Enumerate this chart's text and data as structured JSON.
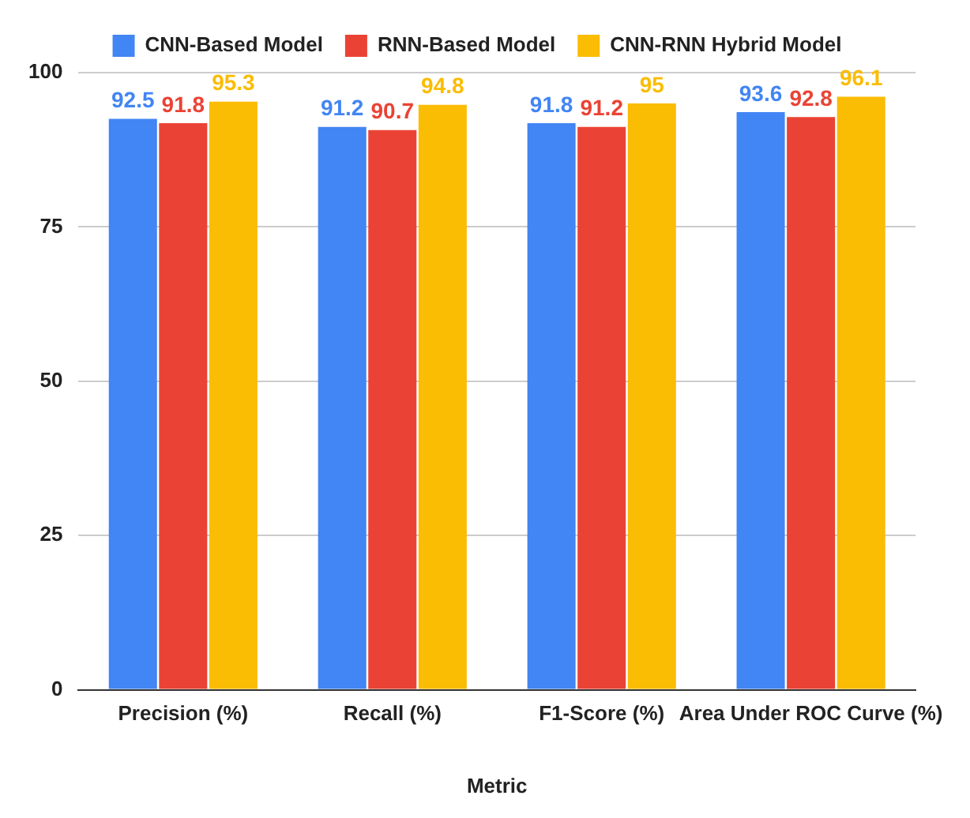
{
  "chart_data": {
    "type": "bar",
    "xlabel": "Metric",
    "categories": [
      "Precision (%)",
      "Recall (%)",
      "F1-Score (%)",
      "Area Under ROC Curve (%)"
    ],
    "series": [
      {
        "name": "CNN-Based Model",
        "color": "#4285f4",
        "values": [
          92.5,
          91.2,
          91.8,
          93.6
        ]
      },
      {
        "name": "RNN-Based Model",
        "color": "#ea4335",
        "values": [
          91.8,
          90.7,
          91.2,
          92.8
        ]
      },
      {
        "name": "CNN-RNN Hybrid Model",
        "color": "#fbbc04",
        "values": [
          95.3,
          94.8,
          95,
          96.1
        ]
      }
    ],
    "ylim": [
      0,
      100
    ],
    "yticks": [
      0,
      25,
      50,
      75,
      100
    ],
    "grid": "y",
    "legend": "top",
    "data_labels": true
  }
}
